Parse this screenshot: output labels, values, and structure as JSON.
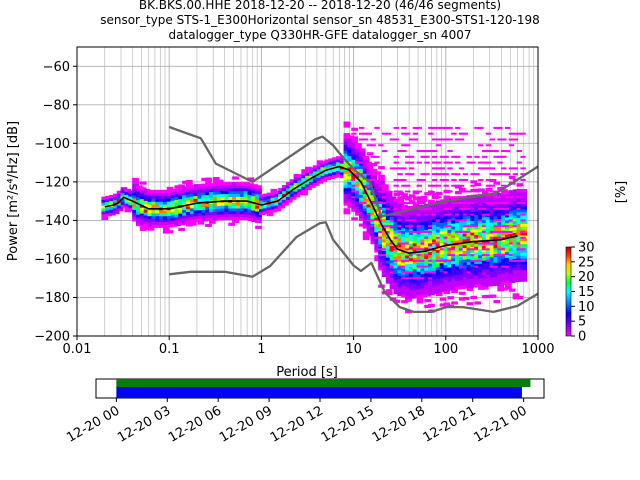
{
  "title_lines": [
    "BK.BKS.00.HHE   2018-12-20 -- 2018-12-20  (46/46 segments)",
    "sensor_type STS-1_E300Horizontal sensor_sn 48531_E300-STS1-120-198",
    "datalogger_type Q330HR-GFE datalogger_sn 4007"
  ],
  "chart_data": [
    {
      "type": "heatmap",
      "xlabel": "Period [s]",
      "ylabel": "Power [m²/s⁴/Hz] [dB]",
      "x_scale": "log",
      "xlim": [
        0.01,
        1000
      ],
      "ylim": [
        -200,
        -50
      ],
      "x_ticks": [
        0.01,
        0.1,
        1,
        10,
        100,
        1000
      ],
      "x_tick_labels": [
        "0.01",
        "0.1",
        "1",
        "10",
        "100",
        "1000"
      ],
      "y_ticks": [
        -200,
        -180,
        -160,
        -140,
        -120,
        -100,
        -80,
        -60
      ],
      "y_tick_labels": [
        "−200",
        "−180",
        "−160",
        "−140",
        "−120",
        "−100",
        "−80",
        "−60"
      ],
      "grid": true,
      "noise_model_high": {
        "period": [
          0.1,
          0.22,
          0.32,
          0.8,
          3.8,
          4.6,
          6.0,
          7.0,
          10,
          15,
          20,
          100,
          350,
          1000
        ],
        "power": [
          -91.5,
          -97.4,
          -110.5,
          -120,
          -98,
          -96.5,
          -101,
          -105,
          -113.5,
          -120,
          -138,
          -130,
          -126,
          -112
        ]
      },
      "noise_model_low": {
        "period": [
          0.1,
          0.17,
          0.4,
          0.8,
          1.24,
          2.4,
          4.3,
          5.0,
          6.0,
          10,
          12,
          15.6,
          21.9,
          31.6,
          45,
          70,
          101,
          154,
          328,
          600,
          1000
        ],
        "power": [
          -168,
          -166.7,
          -166.7,
          -169.2,
          -163.7,
          -148.6,
          -141.5,
          -141,
          -150,
          -163.4,
          -166.2,
          -162.1,
          -177.5,
          -185,
          -187.5,
          -187.5,
          -185,
          -185,
          -187.5,
          -184.4,
          -178
        ]
      },
      "mode_curve": {
        "period": [
          0.02,
          0.025,
          0.028,
          0.032,
          0.04,
          0.06,
          0.1,
          0.2,
          0.4,
          0.7,
          1.0,
          1.5,
          2.2,
          3.5,
          5.0,
          7.0,
          9.0,
          12,
          16,
          20,
          25,
          30,
          40,
          60,
          100,
          200,
          400,
          600
        ],
        "power": [
          -133,
          -132,
          -131,
          -128,
          -130,
          -134,
          -134,
          -131,
          -130,
          -130,
          -132,
          -130,
          -124,
          -118,
          -114,
          -112,
          -114,
          -120,
          -132,
          -142,
          -150,
          -155,
          -157,
          -156,
          -153,
          -151,
          -150,
          -148
        ]
      },
      "colorbar": {
        "label": "[%]",
        "ticks": [
          0,
          5,
          10,
          15,
          20,
          25,
          30
        ],
        "range": [
          0,
          30
        ]
      }
    },
    {
      "type": "bar",
      "x_tick_labels": [
        "12-20 00",
        "12-20 03",
        "12-20 06",
        "12-20 09",
        "12-20 12",
        "12-20 15",
        "12-20 18",
        "12-20 21",
        "12-21 00"
      ],
      "x_ticks_hours": [
        0,
        3,
        6,
        9,
        12,
        15,
        18,
        21,
        24
      ],
      "xlim_hours": [
        -1.2,
        25.2
      ],
      "series": [
        {
          "start_hour": 0,
          "end_hour": 24.4,
          "color": "#008000"
        },
        {
          "start_hour": 0,
          "end_hour": 23.9,
          "color": "#0000ff"
        }
      ]
    }
  ]
}
